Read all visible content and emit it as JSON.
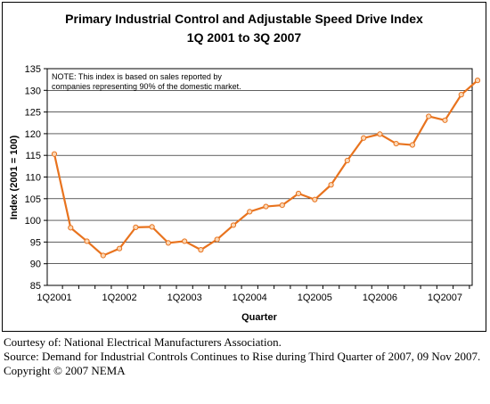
{
  "chart_data": {
    "type": "line",
    "title": [
      "Primary Industrial Control and Adjustable Speed Drive Index",
      "1Q 2001 to 3Q 2007"
    ],
    "xlabel": "Quarter",
    "ylabel": "Index (2001 = 100)",
    "ylim": [
      85,
      135
    ],
    "yticks": [
      85,
      90,
      95,
      100,
      105,
      110,
      115,
      120,
      125,
      130,
      135
    ],
    "grid": "horizontal",
    "legend": "none",
    "note": [
      "NOTE: This index is based on sales reported by",
      "companies representing 90% of the domestic market."
    ],
    "x_tick_labels": [
      {
        "index": 0,
        "label": "1Q2001"
      },
      {
        "index": 4,
        "label": "1Q2002"
      },
      {
        "index": 8,
        "label": "1Q2003"
      },
      {
        "index": 12,
        "label": "1Q2004"
      },
      {
        "index": 16,
        "label": "1Q2005"
      },
      {
        "index": 20,
        "label": "1Q2006"
      },
      {
        "index": 24,
        "label": "1Q2007"
      }
    ],
    "series": [
      {
        "color": "#E8731E",
        "values": [
          115.3,
          98.3,
          95.2,
          91.9,
          93.5,
          98.4,
          98.5,
          94.8,
          95.2,
          93.2,
          95.6,
          98.9,
          102.0,
          103.2,
          103.5,
          106.2,
          104.8,
          108.2,
          113.8,
          119.0,
          119.9,
          117.7,
          117.4,
          124.0,
          123.1,
          129.0,
          132.3
        ]
      }
    ]
  },
  "caption": {
    "line1": "Courtesy of: National Electrical Manufacturers Association.",
    "line2": "Source: Demand for Industrial Controls Continues to Rise during Third Quarter of 2007, 09 Nov 2007.",
    "line3": "Copyright © 2007 NEMA"
  }
}
